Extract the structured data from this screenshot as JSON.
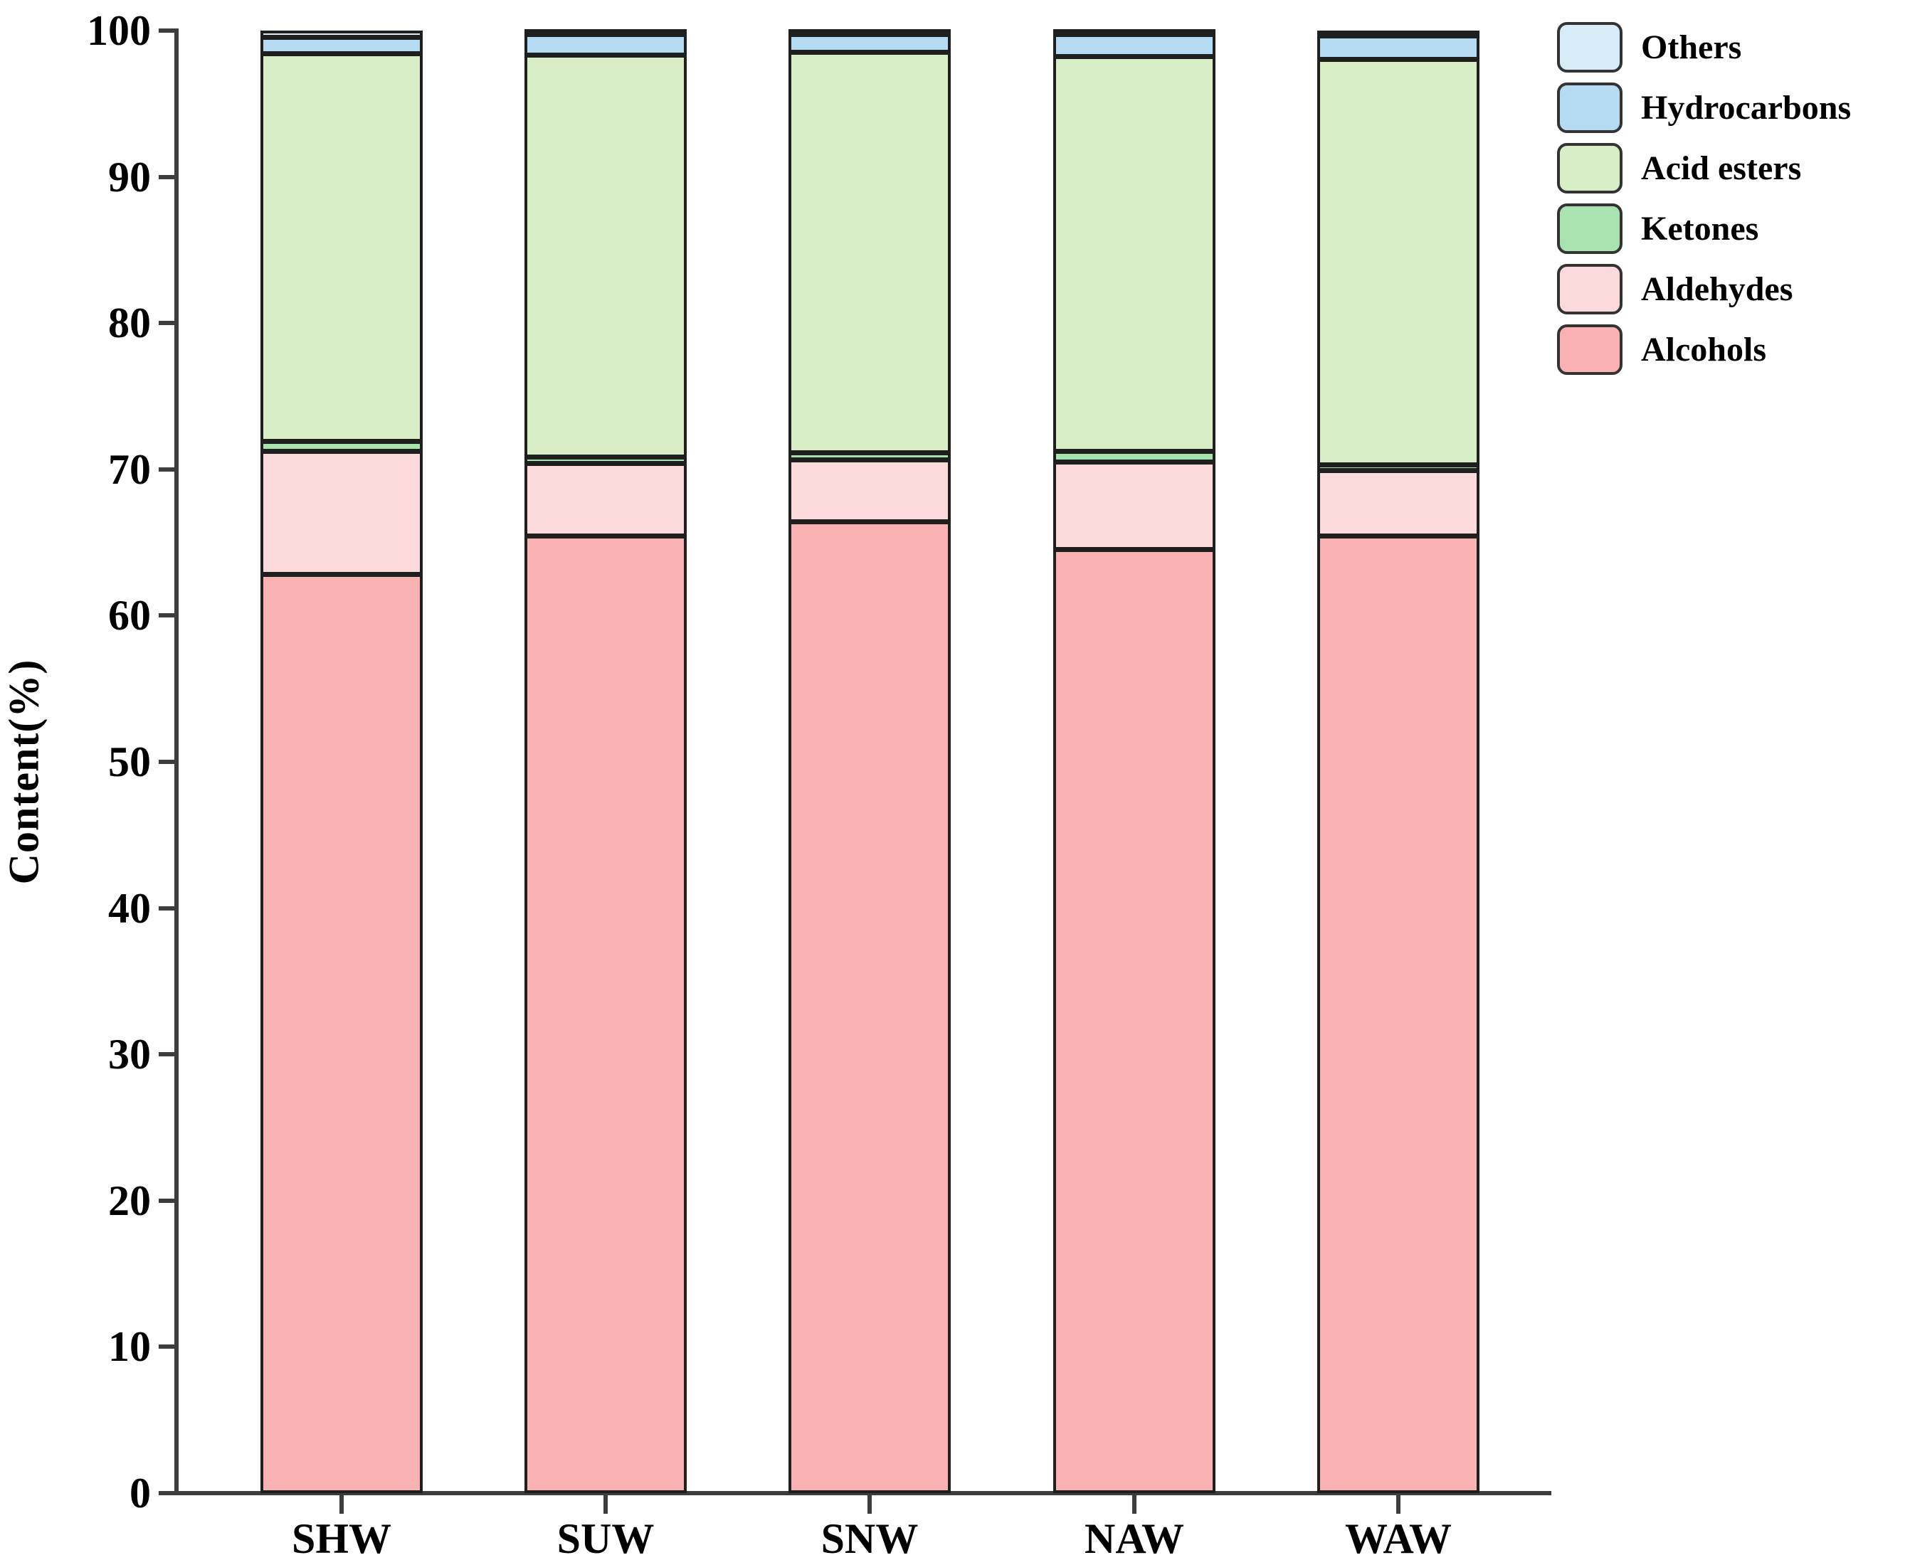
{
  "chart_data": {
    "type": "bar",
    "stacked": true,
    "title": "",
    "xlabel": "",
    "ylabel": "Content(%)",
    "ylim": [
      0,
      100
    ],
    "yticks": [
      0,
      10,
      20,
      30,
      40,
      50,
      60,
      70,
      80,
      90,
      100
    ],
    "grid": false,
    "legend_position": "upper-right-outside",
    "categories": [
      "SHW",
      "SUW",
      "SNW",
      "NAW",
      "WAW"
    ],
    "series": [
      {
        "name": "Alcohols",
        "color": "#f9b2b1",
        "values": [
          62.8,
          65.4,
          66.4,
          64.5,
          65.4
        ]
      },
      {
        "name": "Aldehydes",
        "color": "#fcdadb",
        "values": [
          8.4,
          5.0,
          4.2,
          6.0,
          4.5
        ]
      },
      {
        "name": "Ketones",
        "color": "#a8e2ae",
        "values": [
          0.7,
          0.4,
          0.5,
          0.7,
          0.4
        ]
      },
      {
        "name": "Acid esters",
        "color": "#d8eec7",
        "values": [
          26.5,
          27.5,
          27.4,
          27.0,
          27.7
        ]
      },
      {
        "name": "Hydrocarbons",
        "color": "#b5dbf2",
        "values": [
          1.1,
          1.4,
          1.2,
          1.5,
          1.6
        ]
      },
      {
        "name": "Others",
        "color": "#d8ecf7",
        "values": [
          0.5,
          0.3,
          0.3,
          0.3,
          0.4
        ]
      }
    ]
  },
  "legend": {
    "items": [
      {
        "label": "Others",
        "color": "#d8ecf7"
      },
      {
        "label": "Hydrocarbons",
        "color": "#b5dbf2"
      },
      {
        "label": "Acid esters",
        "color": "#d8eec7"
      },
      {
        "label": "Ketones",
        "color": "#a8e2ae"
      },
      {
        "label": "Aldehydes",
        "color": "#fcdadb"
      },
      {
        "label": "Alcohols",
        "color": "#f9b2b1"
      }
    ]
  },
  "colors": {
    "segment_border": "#1f1f1f",
    "axis": "#3d3d3d",
    "background": "#ffffff",
    "text": "#000000"
  }
}
